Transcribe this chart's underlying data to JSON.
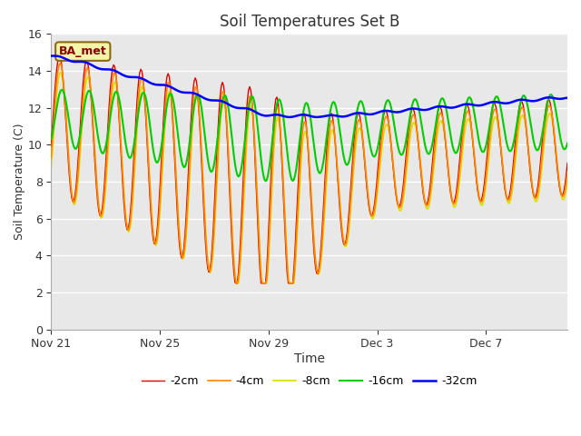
{
  "title": "Soil Temperatures Set B",
  "xlabel": "Time",
  "ylabel": "Soil Temperature (C)",
  "ylim": [
    0,
    16
  ],
  "yticks": [
    0,
    2,
    4,
    6,
    8,
    10,
    12,
    14,
    16
  ],
  "annotation": "BA_met",
  "legend_labels": [
    "-2cm",
    "-4cm",
    "-8cm",
    "-16cm",
    "-32cm"
  ],
  "line_colors": [
    "#dd0000",
    "#ff8800",
    "#dddd00",
    "#00cc00",
    "#0000ff"
  ],
  "line_widths": [
    1.0,
    1.2,
    1.2,
    1.5,
    1.8
  ],
  "xtick_labels": [
    "Nov 21",
    "Nov 25",
    "Nov 29",
    "Dec 3",
    "Dec 7"
  ],
  "xtick_positions": [
    0,
    4,
    8,
    12,
    16
  ],
  "xlim": [
    0,
    19
  ],
  "fig_bg": "#ffffff",
  "plot_bg": "#e8e8e8"
}
